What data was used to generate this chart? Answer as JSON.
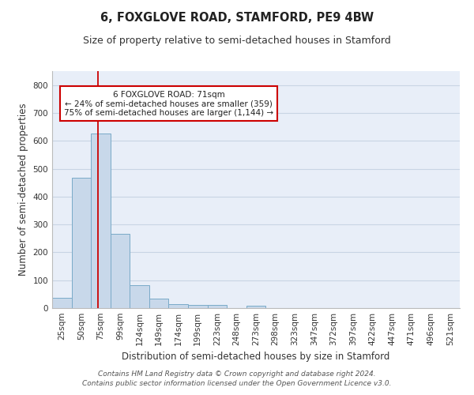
{
  "title": "6, FOXGLOVE ROAD, STAMFORD, PE9 4BW",
  "subtitle": "Size of property relative to semi-detached houses in Stamford",
  "xlabel": "Distribution of semi-detached houses by size in Stamford",
  "ylabel": "Number of semi-detached properties",
  "bar_labels": [
    "25sqm",
    "50sqm",
    "75sqm",
    "99sqm",
    "124sqm",
    "149sqm",
    "174sqm",
    "199sqm",
    "223sqm",
    "248sqm",
    "273sqm",
    "298sqm",
    "323sqm",
    "347sqm",
    "372sqm",
    "397sqm",
    "422sqm",
    "447sqm",
    "471sqm",
    "496sqm",
    "521sqm"
  ],
  "bar_values": [
    37,
    467,
    625,
    267,
    82,
    35,
    15,
    12,
    12,
    0,
    8,
    0,
    0,
    0,
    0,
    0,
    0,
    0,
    0,
    0,
    0
  ],
  "bar_color": "#c8d8ea",
  "bar_edge_color": "#7aaac8",
  "grid_color": "#c8d4e4",
  "property_line_color": "#cc0000",
  "annotation_title": "6 FOXGLOVE ROAD: 71sqm",
  "annotation_line1": "← 24% of semi-detached houses are smaller (359)",
  "annotation_line2": "75% of semi-detached houses are larger (1,144) →",
  "annotation_box_color": "#ffffff",
  "annotation_box_edge": "#cc0000",
  "footer1": "Contains HM Land Registry data © Crown copyright and database right 2024.",
  "footer2": "Contains public sector information licensed under the Open Government Licence v3.0.",
  "ylim": [
    0,
    850
  ],
  "yticks": [
    0,
    100,
    200,
    300,
    400,
    500,
    600,
    700,
    800
  ],
  "title_fontsize": 10.5,
  "subtitle_fontsize": 9,
  "axis_label_fontsize": 8.5,
  "tick_fontsize": 7.5,
  "footer_fontsize": 6.5,
  "bg_color": "#e8eef8"
}
